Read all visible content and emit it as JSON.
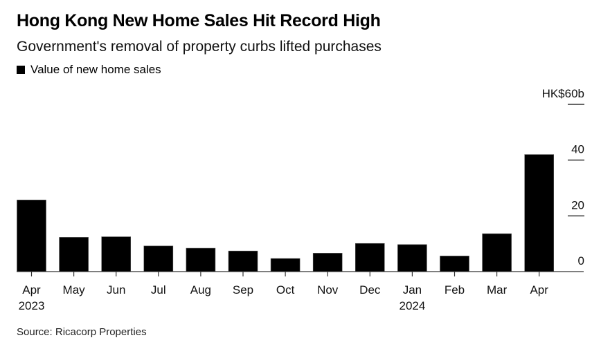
{
  "title": "Hong Kong New Home Sales Hit Record High",
  "subtitle": "Government's removal of property curbs lifted purchases",
  "legend": {
    "label": "Value of new home sales",
    "color": "#000000"
  },
  "source": "Source: Ricacorp Properties",
  "chart_data": {
    "type": "bar",
    "title": "Hong Kong New Home Sales Hit Record High",
    "subtitle": "Government's removal of property curbs lifted purchases",
    "xlabel": "",
    "ylabel": "HK$ billion",
    "ylim": [
      0,
      60
    ],
    "y_ticks": [
      0,
      20,
      40,
      60
    ],
    "y_tick_labels": [
      "0",
      "20",
      "40",
      "HK$60b"
    ],
    "y_axis_side": "right",
    "grid": false,
    "legend_position": "top-left",
    "categories": [
      "Apr",
      "May",
      "Jun",
      "Jul",
      "Aug",
      "Sep",
      "Oct",
      "Nov",
      "Dec",
      "Jan",
      "Feb",
      "Mar",
      "Apr"
    ],
    "category_year_labels": [
      "2023",
      "",
      "",
      "",
      "",
      "",
      "",
      "",
      "",
      "2024",
      "",
      "",
      ""
    ],
    "series": [
      {
        "name": "Value of new home sales",
        "color": "#000000",
        "values": [
          25.7,
          12.3,
          12.5,
          9.2,
          8.4,
          7.4,
          4.7,
          6.6,
          10.1,
          9.7,
          5.6,
          13.6,
          42.0
        ]
      }
    ]
  }
}
